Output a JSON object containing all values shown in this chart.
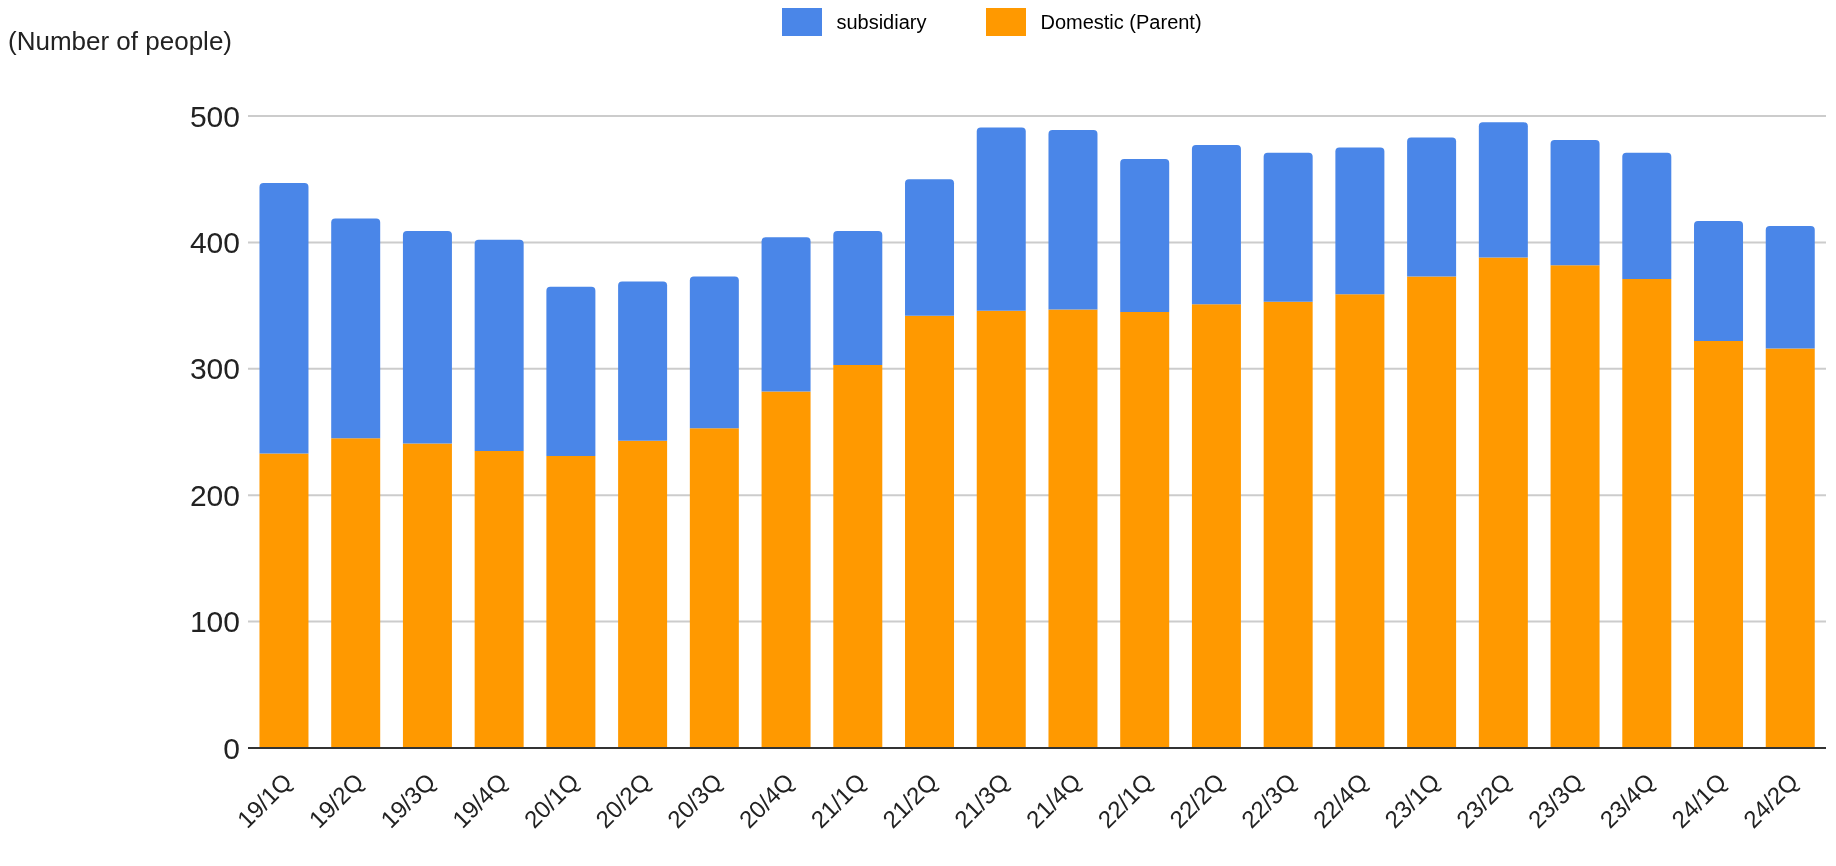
{
  "chart_data": {
    "type": "bar",
    "ylabel": "(Number of people)",
    "stacked": true,
    "legend": "top",
    "grid": "y",
    "categories": [
      "19/1Q",
      "19/2Q",
      "19/3Q",
      "19/4Q",
      "20/1Q",
      "20/2Q",
      "20/3Q",
      "20/4Q",
      "21/1Q",
      "21/2Q",
      "21/3Q",
      "21/4Q",
      "22/1Q",
      "22/2Q",
      "22/3Q",
      "22/4Q",
      "23/1Q",
      "23/2Q",
      "23/3Q",
      "23/4Q",
      "24/1Q",
      "24/2Q"
    ],
    "ylim": [
      0,
      500
    ],
    "yticks": [
      0,
      100,
      200,
      300,
      400,
      500
    ],
    "series": [
      {
        "name": "Domestic (Parent)",
        "color": "#ff9900",
        "values": [
          233,
          245,
          241,
          235,
          231,
          243,
          253,
          282,
          303,
          342,
          346,
          347,
          345,
          351,
          353,
          359,
          373,
          388,
          382,
          371,
          322,
          316
        ]
      },
      {
        "name": "subsidiary",
        "color": "#4a86e8",
        "values": [
          214,
          174,
          168,
          167,
          134,
          126,
          120,
          122,
          106,
          108,
          145,
          142,
          121,
          126,
          118,
          116,
          110,
          107,
          99,
          100,
          95,
          97
        ]
      }
    ]
  }
}
